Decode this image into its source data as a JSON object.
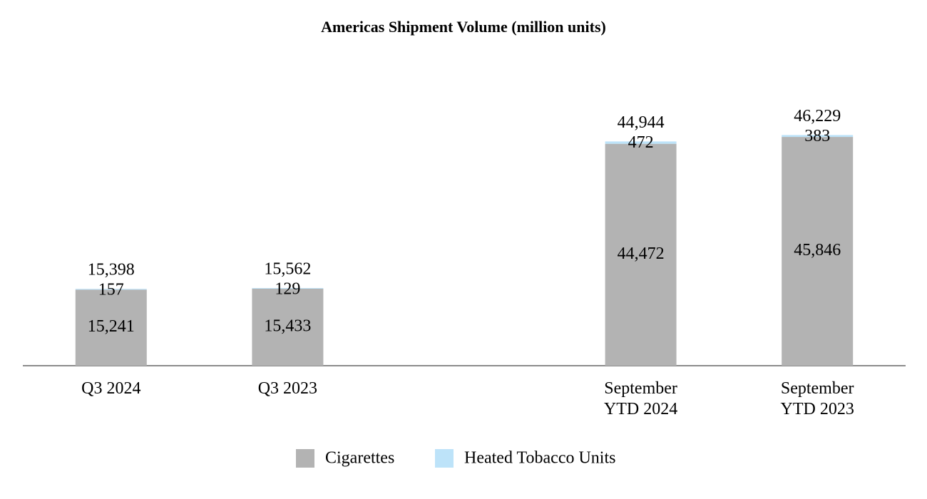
{
  "chart_data": {
    "type": "stacked_bar",
    "title": "Americas Shipment Volume (million units)",
    "categories": [
      "Q3 2024",
      "Q3 2023",
      null,
      "September\nYTD 2024",
      "September\nYTD 2023"
    ],
    "series": [
      {
        "name": "Cigarettes",
        "color": "#b3b3b3",
        "values": [
          15241,
          15433,
          null,
          44472,
          45846
        ],
        "value_labels": [
          "15,241",
          "15,433",
          null,
          "44,472",
          "45,846"
        ]
      },
      {
        "name": "Heated Tobacco Units",
        "color": "#bde3f9",
        "values": [
          157,
          129,
          null,
          472,
          383
        ]
      }
    ],
    "totals": [
      15398,
      15562,
      null,
      44944,
      46229
    ],
    "total_labels": [
      "15,398",
      "15,562",
      null,
      "44,944",
      "46,229"
    ],
    "ylim": [
      0,
      60000
    ],
    "grid": false,
    "legend": "bottom"
  }
}
